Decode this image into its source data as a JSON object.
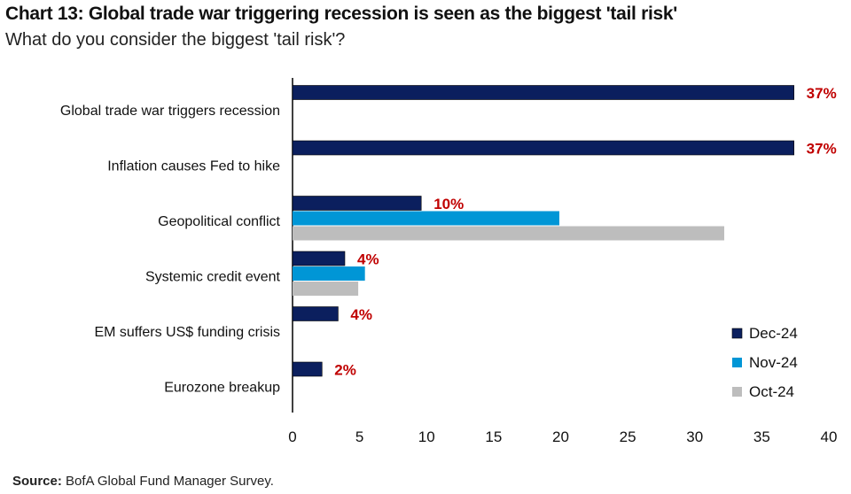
{
  "chart_data": {
    "type": "bar",
    "orientation": "horizontal",
    "title": "Chart 13: Global trade war triggering recession is seen as the biggest 'tail risk'",
    "subtitle": "What do you consider the biggest 'tail risk'?",
    "categories": [
      "Global trade war triggers recession",
      "Inflation causes Fed to hike",
      "Geopolitical conflict",
      "Systemic credit event",
      "EM suffers US$ funding crisis",
      "Eurozone breakup"
    ],
    "series": [
      {
        "name": "Dec-24",
        "color": "#0b1f5e",
        "values": [
          37.4,
          37.4,
          9.6,
          3.9,
          3.4,
          2.2
        ]
      },
      {
        "name": "Nov-24",
        "color": "#0096d6",
        "values": [
          null,
          null,
          19.9,
          5.4,
          null,
          null
        ]
      },
      {
        "name": "Oct-24",
        "color": "#bdbdbd",
        "values": [
          null,
          null,
          32.2,
          4.9,
          null,
          null
        ]
      }
    ],
    "data_labels": [
      "37%",
      "37%",
      "10%",
      "4%",
      "4%",
      "2%"
    ],
    "label_color": "#c00000",
    "xlim": [
      0,
      40
    ],
    "xticks": [
      "0",
      "5",
      "10",
      "15",
      "20",
      "25",
      "30",
      "35",
      "40"
    ],
    "grid": false,
    "legend_position": "bottom-right"
  },
  "source_label": "Source:",
  "source_text": " BofA Global Fund Manager Survey."
}
